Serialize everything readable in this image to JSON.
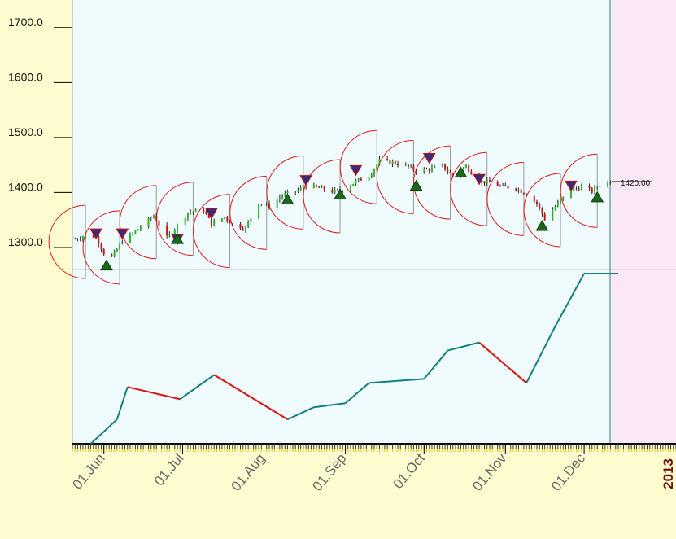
{
  "chart_data": {
    "type": "line",
    "y_ticks": [
      "1700.0",
      "1600.0",
      "1500.0",
      "1400.0",
      "1300.0"
    ],
    "y_tick_values": [
      1700,
      1600,
      1500,
      1400,
      1300
    ],
    "last_price_label": "1420.00",
    "last_price": 1420,
    "x_tick_labels": [
      "01.Jun",
      "01.Jul",
      "01.Aug",
      "01.Sep",
      "01.Oct",
      "01.Nov",
      "01.Dec"
    ],
    "x_tick_dates": [
      "2012-06-01",
      "2012-07-01",
      "2012-08-01",
      "2012-09-01",
      "2012-10-01",
      "2012-11-01",
      "2012-12-01"
    ],
    "year_label": "2013",
    "date_range": [
      "2012-05-20",
      "2013-01-05"
    ],
    "current_date": "2012-12-12",
    "ylim": [
      1260,
      1750
    ],
    "price_series": [
      [
        "2012-05-21",
        1315
      ],
      [
        "2012-05-25",
        1322
      ],
      [
        "2012-05-29",
        1320
      ],
      [
        "2012-06-01",
        1290
      ],
      [
        "2012-06-04",
        1282
      ],
      [
        "2012-06-08",
        1312
      ],
      [
        "2012-06-12",
        1325
      ],
      [
        "2012-06-15",
        1338
      ],
      [
        "2012-06-20",
        1358
      ],
      [
        "2012-06-25",
        1318
      ],
      [
        "2012-06-29",
        1340
      ],
      [
        "2012-07-03",
        1364
      ],
      [
        "2012-07-09",
        1368
      ],
      [
        "2012-07-12",
        1342
      ],
      [
        "2012-07-17",
        1356
      ],
      [
        "2012-07-20",
        1342
      ],
      [
        "2012-07-25",
        1335
      ],
      [
        "2012-07-30",
        1382
      ],
      [
        "2012-08-03",
        1375
      ],
      [
        "2012-08-08",
        1395
      ],
      [
        "2012-08-13",
        1402
      ],
      [
        "2012-08-17",
        1412
      ],
      [
        "2012-08-22",
        1408
      ],
      [
        "2012-08-27",
        1402
      ],
      [
        "2012-08-31",
        1405
      ],
      [
        "2012-09-05",
        1420
      ],
      [
        "2012-09-10",
        1430
      ],
      [
        "2012-09-14",
        1458
      ],
      [
        "2012-09-19",
        1455
      ],
      [
        "2012-09-24",
        1448
      ],
      [
        "2012-09-28",
        1440
      ],
      [
        "2012-10-03",
        1442
      ],
      [
        "2012-10-08",
        1448
      ],
      [
        "2012-10-12",
        1430
      ],
      [
        "2012-10-17",
        1448
      ],
      [
        "2012-10-22",
        1420
      ],
      [
        "2012-10-26",
        1418
      ],
      [
        "2012-10-31",
        1410
      ],
      [
        "2012-11-05",
        1408
      ],
      [
        "2012-11-08",
        1400
      ],
      [
        "2012-11-13",
        1380
      ],
      [
        "2012-11-16",
        1352
      ],
      [
        "2012-11-21",
        1380
      ],
      [
        "2012-11-26",
        1405
      ],
      [
        "2012-11-30",
        1410
      ],
      [
        "2012-12-04",
        1402
      ],
      [
        "2012-12-07",
        1415
      ],
      [
        "2012-12-11",
        1420
      ]
    ],
    "down_signals": [
      [
        "2012-05-29",
        1325
      ],
      [
        "2012-06-08",
        1325
      ],
      [
        "2012-06-29",
        1315
      ],
      [
        "2012-07-12",
        1362
      ],
      [
        "2012-08-17",
        1422
      ],
      [
        "2012-09-05",
        1440
      ],
      [
        "2012-10-03",
        1462
      ],
      [
        "2012-10-22",
        1424
      ],
      [
        "2012-11-26",
        1412
      ]
    ],
    "up_signals": [
      [
        "2012-06-02",
        1268
      ],
      [
        "2012-06-29",
        1316
      ],
      [
        "2012-08-10",
        1388
      ],
      [
        "2012-08-30",
        1397
      ],
      [
        "2012-09-28",
        1413
      ],
      [
        "2012-10-15",
        1437
      ],
      [
        "2012-11-15",
        1340
      ],
      [
        "2012-12-06",
        1392
      ]
    ],
    "arc_centers": [
      "2012-05-25",
      "2012-06-07",
      "2012-06-21",
      "2012-07-05",
      "2012-07-19",
      "2012-08-02",
      "2012-08-16",
      "2012-08-30",
      "2012-09-13",
      "2012-09-27",
      "2012-10-11",
      "2012-10-25",
      "2012-11-08",
      "2012-11-22",
      "2012-12-06"
    ],
    "equity_curve": {
      "points": [
        [
          "2012-05-27",
          0
        ],
        [
          "2012-06-06",
          60
        ],
        [
          "2012-06-10",
          140
        ],
        [
          "2012-06-30",
          110
        ],
        [
          "2012-07-13",
          170
        ],
        [
          "2012-08-10",
          60
        ],
        [
          "2012-08-20",
          90
        ],
        [
          "2012-09-01",
          100
        ],
        [
          "2012-09-10",
          150
        ],
        [
          "2012-10-01",
          160
        ],
        [
          "2012-10-10",
          230
        ],
        [
          "2012-10-22",
          250
        ],
        [
          "2012-11-09",
          150
        ],
        [
          "2012-11-20",
          290
        ],
        [
          "2012-12-01",
          420
        ],
        [
          "2012-12-14",
          420
        ]
      ],
      "segment_colors": [
        "#118080",
        "#118080",
        "#dd1111",
        "#118080",
        "#dd1111",
        "#118080",
        "#118080",
        "#118080",
        "#118080",
        "#118080",
        "#118080",
        "#dd1111",
        "#118080",
        "#118080",
        "#118080"
      ],
      "ylim": [
        0,
        420
      ]
    },
    "colors": {
      "page_background": "#fffdd0",
      "plot_background": "#f0fbfd",
      "future_background": "#fbe8f7",
      "arc": "#dd1a1a",
      "bar_up": "#22bb22",
      "bar_down": "#cc1111",
      "down_signal": "#3a2a7a",
      "up_signal": "#1a6a1a",
      "year_label": "#7a1010",
      "equity_up": "#118080",
      "equity_down": "#dd1111",
      "cursor_line": "#2a8080"
    }
  }
}
